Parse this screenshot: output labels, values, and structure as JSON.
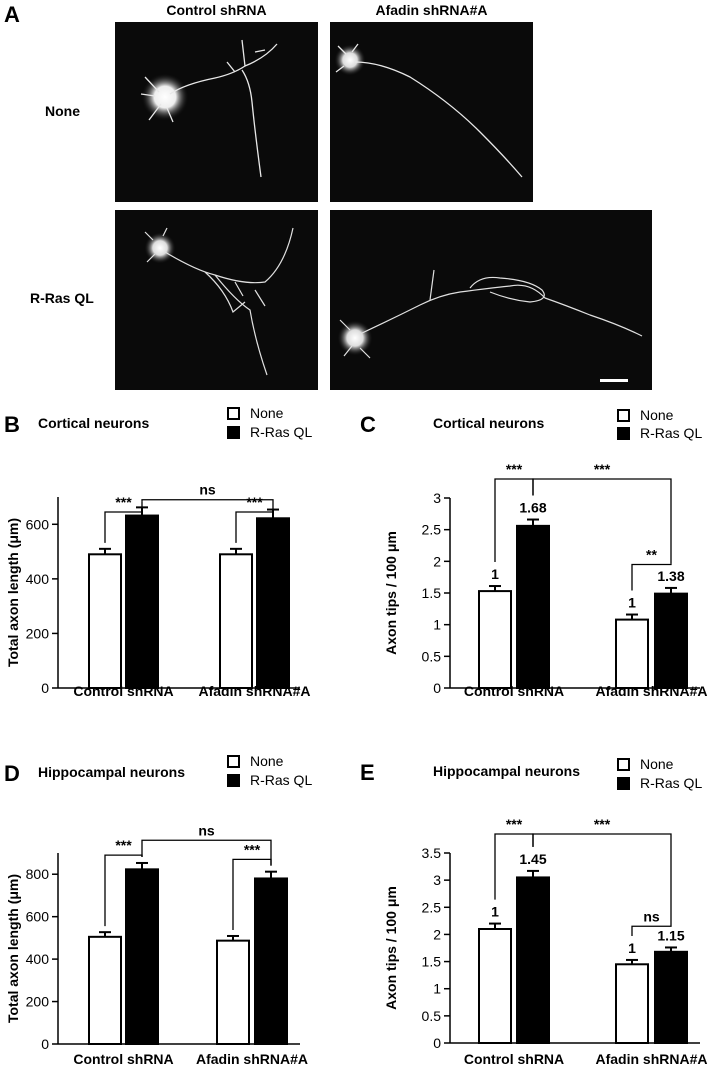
{
  "panel_a": {
    "letter": "A",
    "col_headers": [
      "Control shRNA",
      "Afadin shRNA#A"
    ],
    "row_headers": [
      "None",
      "R-Ras QL"
    ]
  },
  "chart_data": [
    {
      "id": "B",
      "type": "bar",
      "title": "Cortical neurons",
      "ylabel": "Total axon length (μm)",
      "ylim": [
        0,
        700
      ],
      "yticks": [
        0,
        200,
        400,
        600
      ],
      "categories": [
        "Control shRNA",
        "Afadin shRNA#A"
      ],
      "series": [
        {
          "name": "None",
          "values": [
            490,
            490
          ],
          "errors": [
            20,
            20
          ],
          "color": "#ffffff"
        },
        {
          "name": "R-Ras QL",
          "values": [
            632,
            622
          ],
          "errors": [
            30,
            32
          ],
          "color": "#000000"
        }
      ],
      "bar_labels": null,
      "comparisons": [
        {
          "label": "***",
          "from": [
            0,
            0
          ],
          "to": [
            0,
            1
          ],
          "level": 645
        },
        {
          "label": "ns",
          "from": [
            0,
            1
          ],
          "to": [
            1,
            1
          ],
          "level": 690
        },
        {
          "label": "***",
          "from": [
            1,
            0
          ],
          "to": [
            1,
            1
          ],
          "level": 645
        }
      ]
    },
    {
      "id": "C",
      "type": "bar",
      "title": "Cortical neurons",
      "ylabel": "Axon tips / 100 μm",
      "ylim": [
        0,
        3
      ],
      "yticks": [
        0,
        0.5,
        1,
        1.5,
        2,
        2.5,
        3
      ],
      "categories": [
        "Control shRNA",
        "Afadin shRNA#A"
      ],
      "series": [
        {
          "name": "None",
          "values": [
            1.53,
            1.08
          ],
          "errors": [
            0.08,
            0.08
          ],
          "color": "#ffffff"
        },
        {
          "name": "R-Ras QL",
          "values": [
            2.56,
            1.49
          ],
          "errors": [
            0.1,
            0.09
          ],
          "color": "#000000"
        }
      ],
      "bar_labels": [
        [
          "1",
          "1"
        ],
        [
          "1.68",
          "1.38"
        ]
      ],
      "comparisons": [
        {
          "label": "***",
          "from": [
            0,
            0
          ],
          "to": [
            0,
            1
          ],
          "level": 3.3
        },
        {
          "label": "***",
          "from": [
            0,
            1
          ],
          "to": [
            1,
            1
          ],
          "level": 3.3
        },
        {
          "label": "**",
          "from": [
            1,
            0
          ],
          "to": [
            1,
            1
          ],
          "level": 1.95
        }
      ]
    },
    {
      "id": "D",
      "type": "bar",
      "title": "Hippocampal neurons",
      "ylabel": "Total axon length (μm)",
      "ylim": [
        0,
        900
      ],
      "yticks": [
        0,
        200,
        400,
        600,
        800
      ],
      "categories": [
        "Control shRNA",
        "Afadin shRNA#A"
      ],
      "series": [
        {
          "name": "None",
          "values": [
            505,
            487
          ],
          "errors": [
            22,
            22
          ],
          "color": "#ffffff"
        },
        {
          "name": "R-Ras QL",
          "values": [
            823,
            780
          ],
          "errors": [
            30,
            32
          ],
          "color": "#000000"
        }
      ],
      "bar_labels": null,
      "comparisons": [
        {
          "label": "***",
          "from": [
            0,
            0
          ],
          "to": [
            0,
            1
          ],
          "level": 890
        },
        {
          "label": "ns",
          "from": [
            0,
            1
          ],
          "to": [
            1,
            1
          ],
          "level": 960
        },
        {
          "label": "***",
          "from": [
            1,
            0
          ],
          "to": [
            1,
            1
          ],
          "level": 870
        }
      ]
    },
    {
      "id": "E",
      "type": "bar",
      "title": "Hippocampal neurons",
      "ylabel": "Axon tips / 100 μm",
      "ylim": [
        0,
        3.5
      ],
      "yticks": [
        0,
        0.5,
        1,
        1.5,
        2,
        2.5,
        3,
        3.5
      ],
      "categories": [
        "Control shRNA",
        "Afadin shRNA#A"
      ],
      "series": [
        {
          "name": "None",
          "values": [
            2.1,
            1.45
          ],
          "errors": [
            0.1,
            0.08
          ],
          "color": "#ffffff"
        },
        {
          "name": "R-Ras QL",
          "values": [
            3.05,
            1.68
          ],
          "errors": [
            0.12,
            0.08
          ],
          "color": "#000000"
        }
      ],
      "bar_labels": [
        [
          "1",
          "1"
        ],
        [
          "1.45",
          "1.15"
        ]
      ],
      "comparisons": [
        {
          "label": "***",
          "from": [
            0,
            0
          ],
          "to": [
            0,
            1
          ],
          "level": 3.85
        },
        {
          "label": "***",
          "from": [
            0,
            1
          ],
          "to": [
            1,
            1
          ],
          "level": 3.85
        },
        {
          "label": "ns",
          "from": [
            1,
            0
          ],
          "to": [
            1,
            1
          ],
          "level": 2.15
        }
      ]
    }
  ]
}
